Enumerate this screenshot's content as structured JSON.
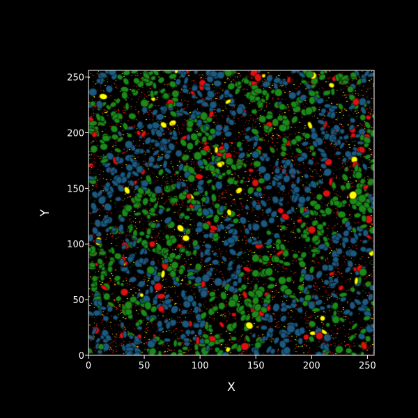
{
  "chart_data": {
    "type": "heatmap",
    "title": "",
    "xlabel": "X",
    "ylabel": "Y",
    "xlim": [
      0,
      256
    ],
    "ylim": [
      0,
      256
    ],
    "x_ticks": [
      0,
      50,
      100,
      150,
      200,
      250
    ],
    "y_ticks": [
      0,
      50,
      100,
      150,
      200,
      250
    ],
    "x_tick_labels": [
      "0",
      "50",
      "100",
      "150",
      "200",
      "250"
    ],
    "y_tick_labels": [
      "0",
      "50",
      "100",
      "150",
      "200",
      "250"
    ],
    "grid": false,
    "legend": "none",
    "background_color": "#000000",
    "axis_color": "#ffffff",
    "grid_resolution": [
      256,
      256
    ],
    "categories": [
      {
        "id": 0,
        "color": "#000000"
      },
      {
        "id": 1,
        "color": "#e01010"
      },
      {
        "id": 2,
        "color": "#ffff00"
      },
      {
        "id": 3,
        "color": "#1a8a1a"
      },
      {
        "id": 4,
        "color": "#1a5a80"
      }
    ],
    "description_of_field": "Random cellular segmentation field: each grid cell takes one of the category colors; dense clusters of green and blue grains with scattered red and yellow regions on black background."
  }
}
